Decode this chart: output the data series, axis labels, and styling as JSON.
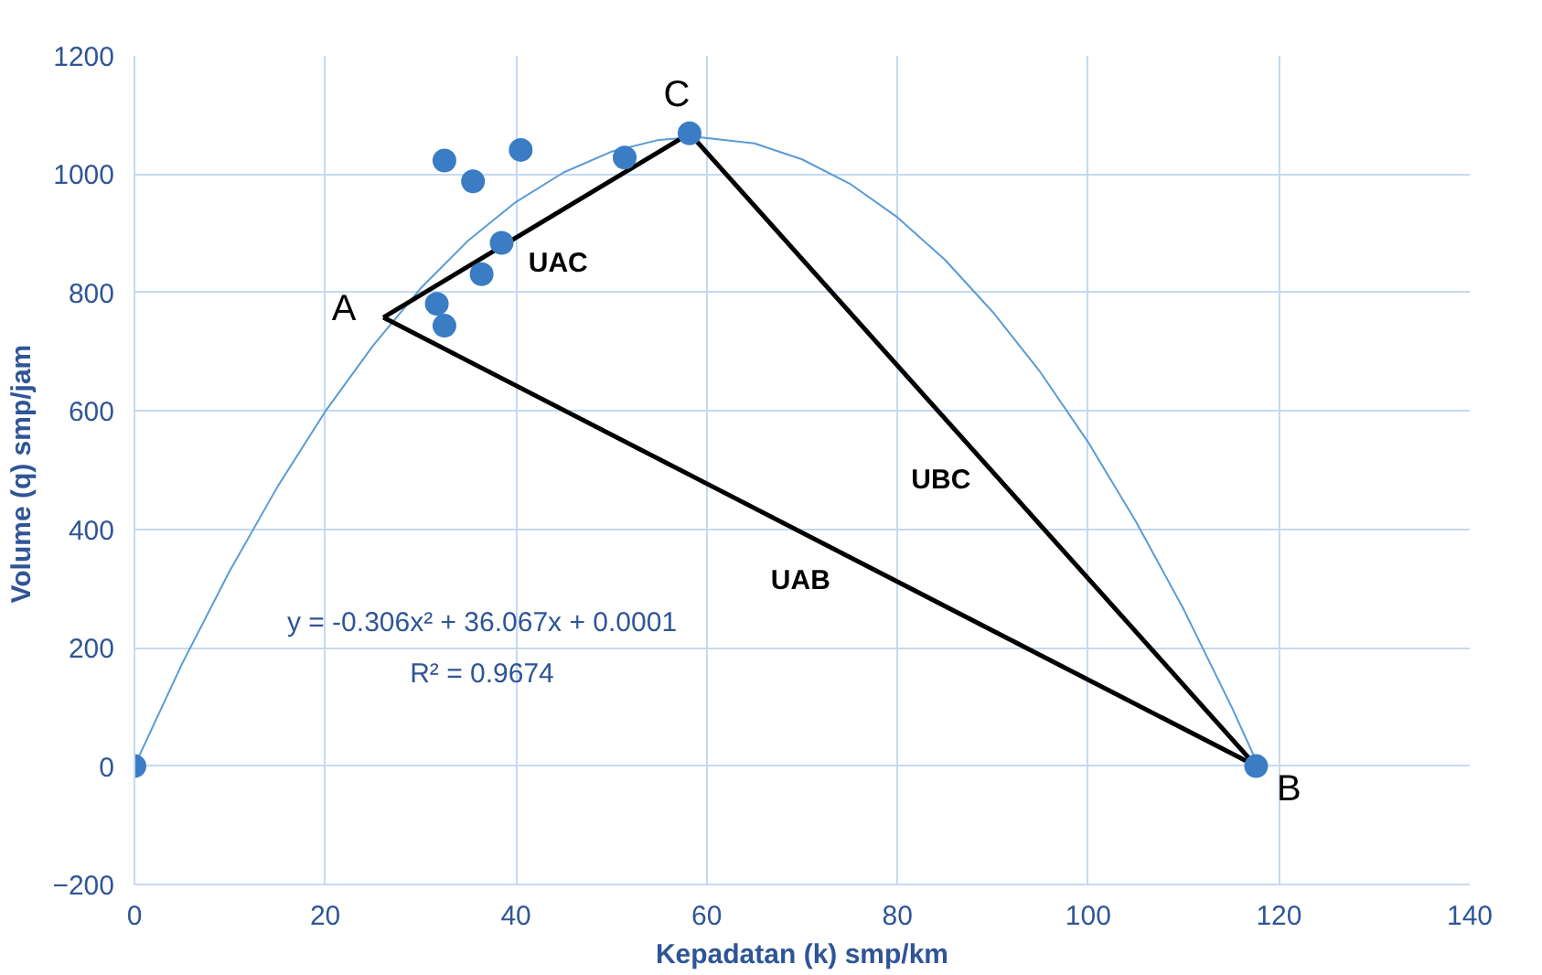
{
  "chart_data": {
    "type": "scatter",
    "xlabel": "Kepadatan (k) smp/km",
    "ylabel": "Volume (q)  smp/jam",
    "xlim": [
      0,
      140
    ],
    "xticks": [
      0,
      20,
      40,
      60,
      80,
      100,
      120,
      140
    ],
    "ylim": [
      -200,
      1200
    ],
    "yticks": [
      -200,
      0,
      200,
      400,
      600,
      800,
      1000,
      1200
    ],
    "grid": true,
    "series": [
      {
        "type": "line",
        "color": "#5b9bd5",
        "x": [
          0,
          5,
          10,
          15,
          20,
          25,
          30,
          35,
          40,
          45,
          50,
          55,
          59,
          65,
          70,
          75,
          80,
          85,
          90,
          95,
          100,
          105,
          110,
          115,
          117.8
        ],
        "values": [
          0,
          173,
          330,
          472,
          599,
          710,
          807,
          888,
          953,
          1003,
          1038,
          1058,
          1063,
          1052,
          1025,
          984,
          927,
          855,
          767,
          665,
          547,
          413,
          265,
          101,
          2
        ]
      },
      {
        "type": "line",
        "name": "UAC",
        "color": "#000000",
        "x": [
          26.1,
          58.2
        ],
        "values": [
          758,
          1069
        ],
        "value_labels": [
          "A",
          "C"
        ]
      },
      {
        "type": "line",
        "name": "UBC",
        "color": "#000000",
        "x": [
          58.2,
          117.6
        ],
        "values": [
          1069,
          0
        ],
        "value_labels": [
          null,
          "B"
        ]
      },
      {
        "type": "line",
        "name": "UAB",
        "color": "#000000",
        "x": [
          26.1,
          117.6
        ],
        "values": [
          758,
          0
        ]
      },
      {
        "color": "#3a7dc4",
        "marker": "circle",
        "x": [
          0,
          31.7,
          32.5,
          36.4,
          38.5,
          32.5,
          35.5,
          40.5,
          51.4,
          58.2,
          117.6
        ],
        "values": [
          0,
          781,
          744,
          831,
          884,
          1023,
          988,
          1041,
          1028,
          1069,
          0
        ]
      }
    ],
    "annotations": [
      "y = -0.306x² + 36.067x + 0.0001",
      "R² = 0.9674"
    ]
  }
}
